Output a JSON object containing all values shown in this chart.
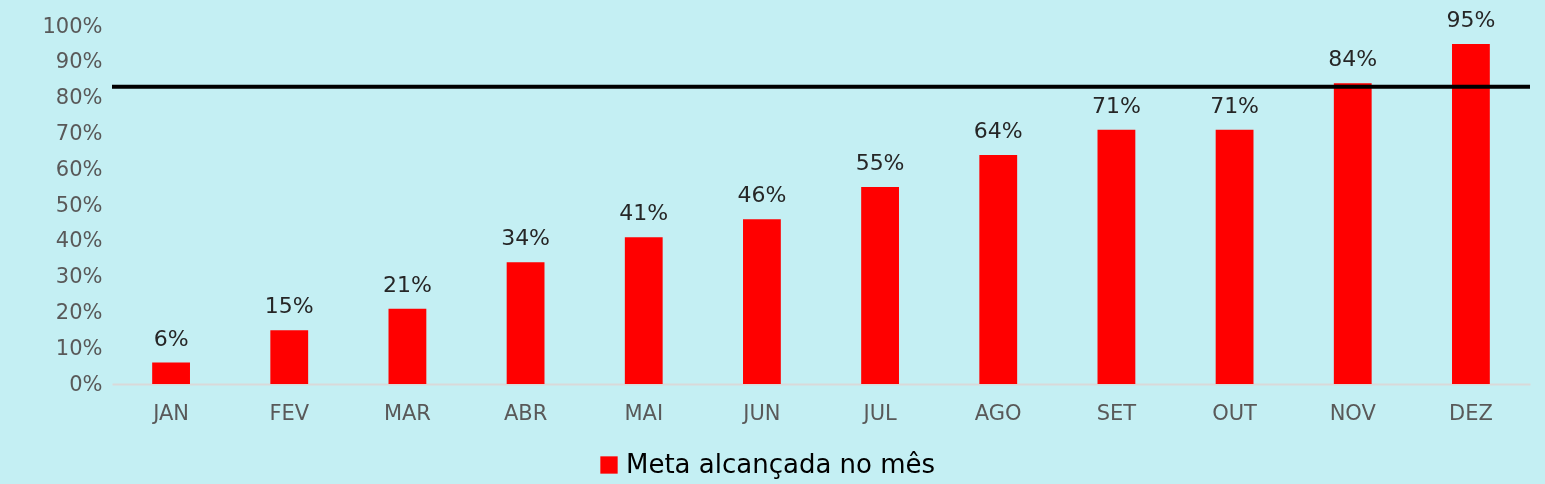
{
  "chart_data": {
    "type": "bar",
    "categories": [
      "JAN",
      "FEV",
      "MAR",
      "ABR",
      "MAI",
      "JUN",
      "JUL",
      "AGO",
      "SET",
      "OUT",
      "NOV",
      "DEZ"
    ],
    "series": [
      {
        "name": "Meta alcançada no mês",
        "color": "#ff0000",
        "values": [
          6,
          15,
          21,
          34,
          41,
          46,
          55,
          64,
          71,
          71,
          84,
          95
        ]
      }
    ],
    "value_labels": [
      "6%",
      "15%",
      "21%",
      "34%",
      "41%",
      "46%",
      "55%",
      "64%",
      "71%",
      "71%",
      "84%",
      "95%"
    ],
    "ylim": [
      0,
      100
    ],
    "yticks": [
      {
        "value": 0,
        "label": "0%"
      },
      {
        "value": 10,
        "label": "10%"
      },
      {
        "value": 20,
        "label": "20%"
      },
      {
        "value": 30,
        "label": "30%"
      },
      {
        "value": 40,
        "label": "40%"
      },
      {
        "value": 50,
        "label": "50%"
      },
      {
        "value": 60,
        "label": "60%"
      },
      {
        "value": 70,
        "label": "70%"
      },
      {
        "value": 80,
        "label": "80%"
      },
      {
        "value": 90,
        "label": "90%"
      },
      {
        "value": 100,
        "label": "100%"
      }
    ],
    "ref_lines": [
      {
        "axis": "y",
        "value": 83,
        "color": "#000000"
      }
    ],
    "grid": false,
    "legend": "bottom"
  }
}
